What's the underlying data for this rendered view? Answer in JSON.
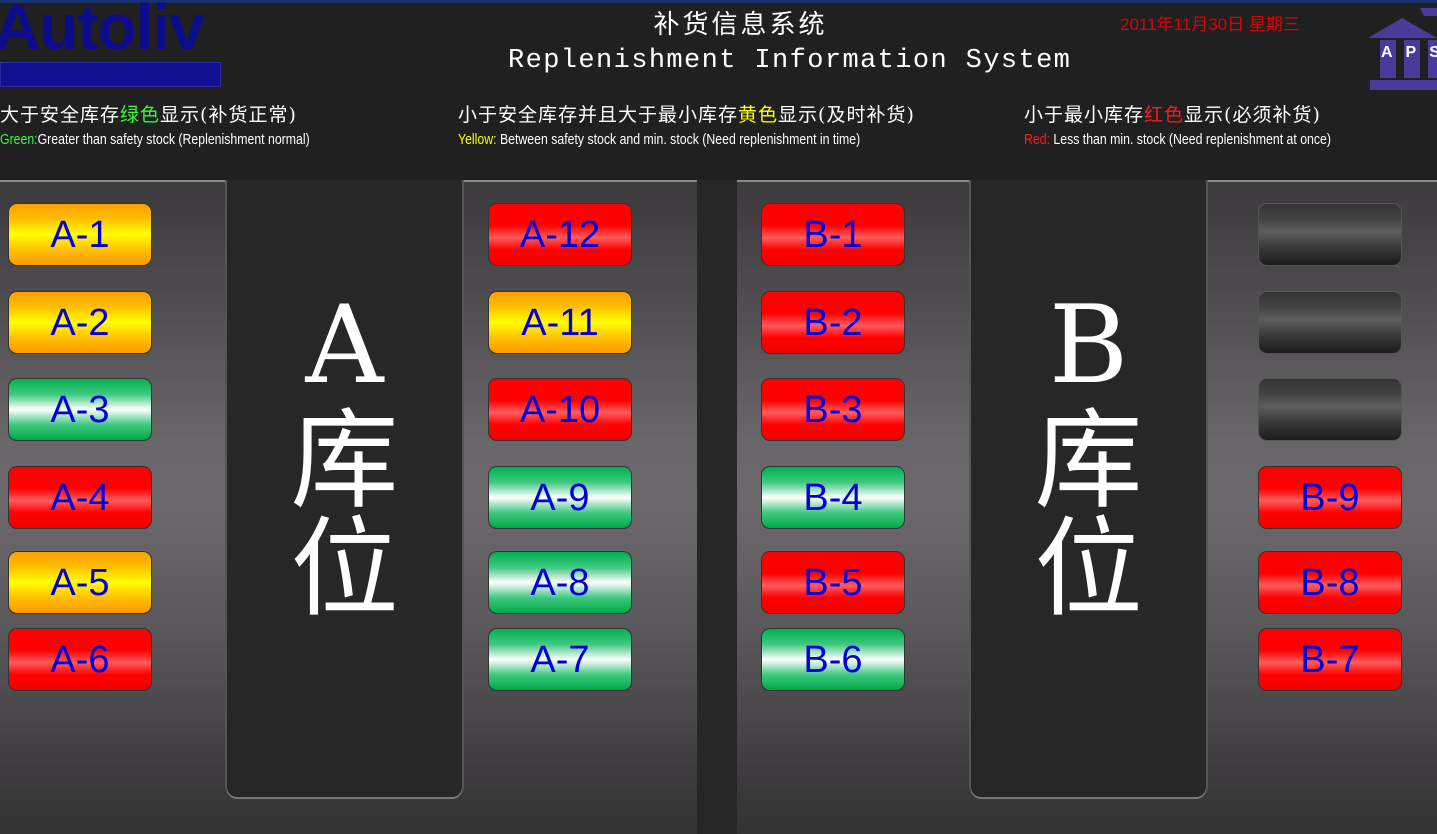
{
  "header": {
    "logo_text": "Autoliv",
    "title_cn": "补货信息系统",
    "title_en": "Replenishment Information System",
    "date": "2011年11月30日  星期三",
    "aps_logo_text": "APS"
  },
  "legend": [
    {
      "cn_pre": "大于安全库存",
      "cn_color": "绿色",
      "cn_post": "显示(补货正常)",
      "en_key": "Green:",
      "en_text": "Greater than safety stock (Replenishment normal)",
      "color": "#33ff33"
    },
    {
      "cn_pre": "小于安全库存并且大于最小库存",
      "cn_color": "黄色",
      "cn_post": "显示(及时补货)",
      "en_key": "Yellow:",
      "en_text": " Between safety stock and min. stock (Need replenishment in time)",
      "color": "#ffff00"
    },
    {
      "cn_pre": "小于最小库存",
      "cn_color": "红色",
      "cn_post": "显示(必须补货)",
      "en_key": "Red:",
      "en_text": " Less than min. stock (Need replenishment at once)",
      "color": "#ff1a1a"
    }
  ],
  "zones": {
    "a": {
      "letter": "A",
      "line2": "库",
      "line3": "位"
    },
    "b": {
      "letter": "B",
      "line2": "库",
      "line3": "位"
    }
  },
  "status_colors": {
    "red": "#ff0000",
    "yellow": "#ffff00",
    "green": "#00b050",
    "empty": "#3a3a3a"
  },
  "columns": [
    {
      "bins": [
        {
          "id": "A-1",
          "status": "yellow"
        },
        {
          "id": "A-2",
          "status": "yellow"
        },
        {
          "id": "A-3",
          "status": "green"
        },
        {
          "id": "A-4",
          "status": "red"
        },
        {
          "id": "A-5",
          "status": "yellow"
        },
        {
          "id": "A-6",
          "status": "red"
        }
      ]
    },
    {
      "bins": [
        {
          "id": "A-12",
          "status": "red"
        },
        {
          "id": "A-11",
          "status": "yellow"
        },
        {
          "id": "A-10",
          "status": "red"
        },
        {
          "id": "A-9",
          "status": "green"
        },
        {
          "id": "A-8",
          "status": "green"
        },
        {
          "id": "A-7",
          "status": "green"
        }
      ]
    },
    {
      "bins": [
        {
          "id": "B-1",
          "status": "red"
        },
        {
          "id": "B-2",
          "status": "red"
        },
        {
          "id": "B-3",
          "status": "red"
        },
        {
          "id": "B-4",
          "status": "green"
        },
        {
          "id": "B-5",
          "status": "red"
        },
        {
          "id": "B-6",
          "status": "green"
        }
      ]
    },
    {
      "bins": [
        {
          "id": "",
          "status": "empty"
        },
        {
          "id": "",
          "status": "empty"
        },
        {
          "id": "",
          "status": "empty"
        },
        {
          "id": "B-9",
          "status": "red"
        },
        {
          "id": "B-8",
          "status": "red"
        },
        {
          "id": "B-7",
          "status": "red"
        }
      ]
    }
  ]
}
